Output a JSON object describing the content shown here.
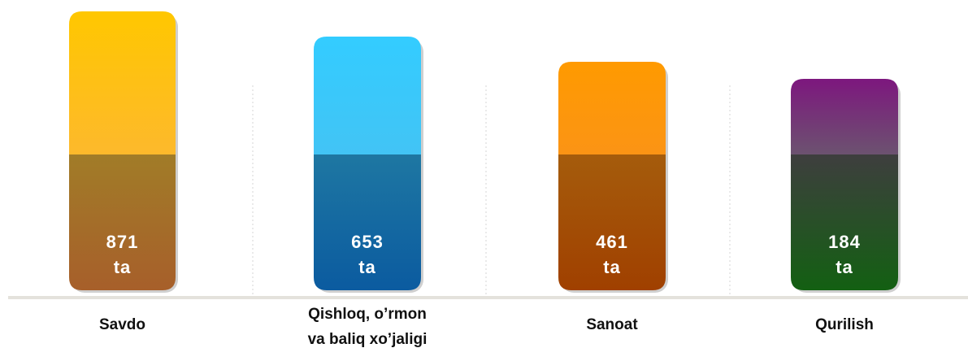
{
  "items": [
    {
      "value": "871",
      "unit": "ta",
      "label": [
        "Savdo"
      ]
    },
    {
      "value": "653",
      "unit": "ta",
      "label": [
        "Qishloq, o’rmon",
        "va baliq xo’jaligi"
      ]
    },
    {
      "value": "461",
      "unit": "ta",
      "label": [
        "Sanoat"
      ]
    },
    {
      "value": "184",
      "unit": "ta",
      "label": [
        "Qurilish"
      ]
    }
  ]
}
